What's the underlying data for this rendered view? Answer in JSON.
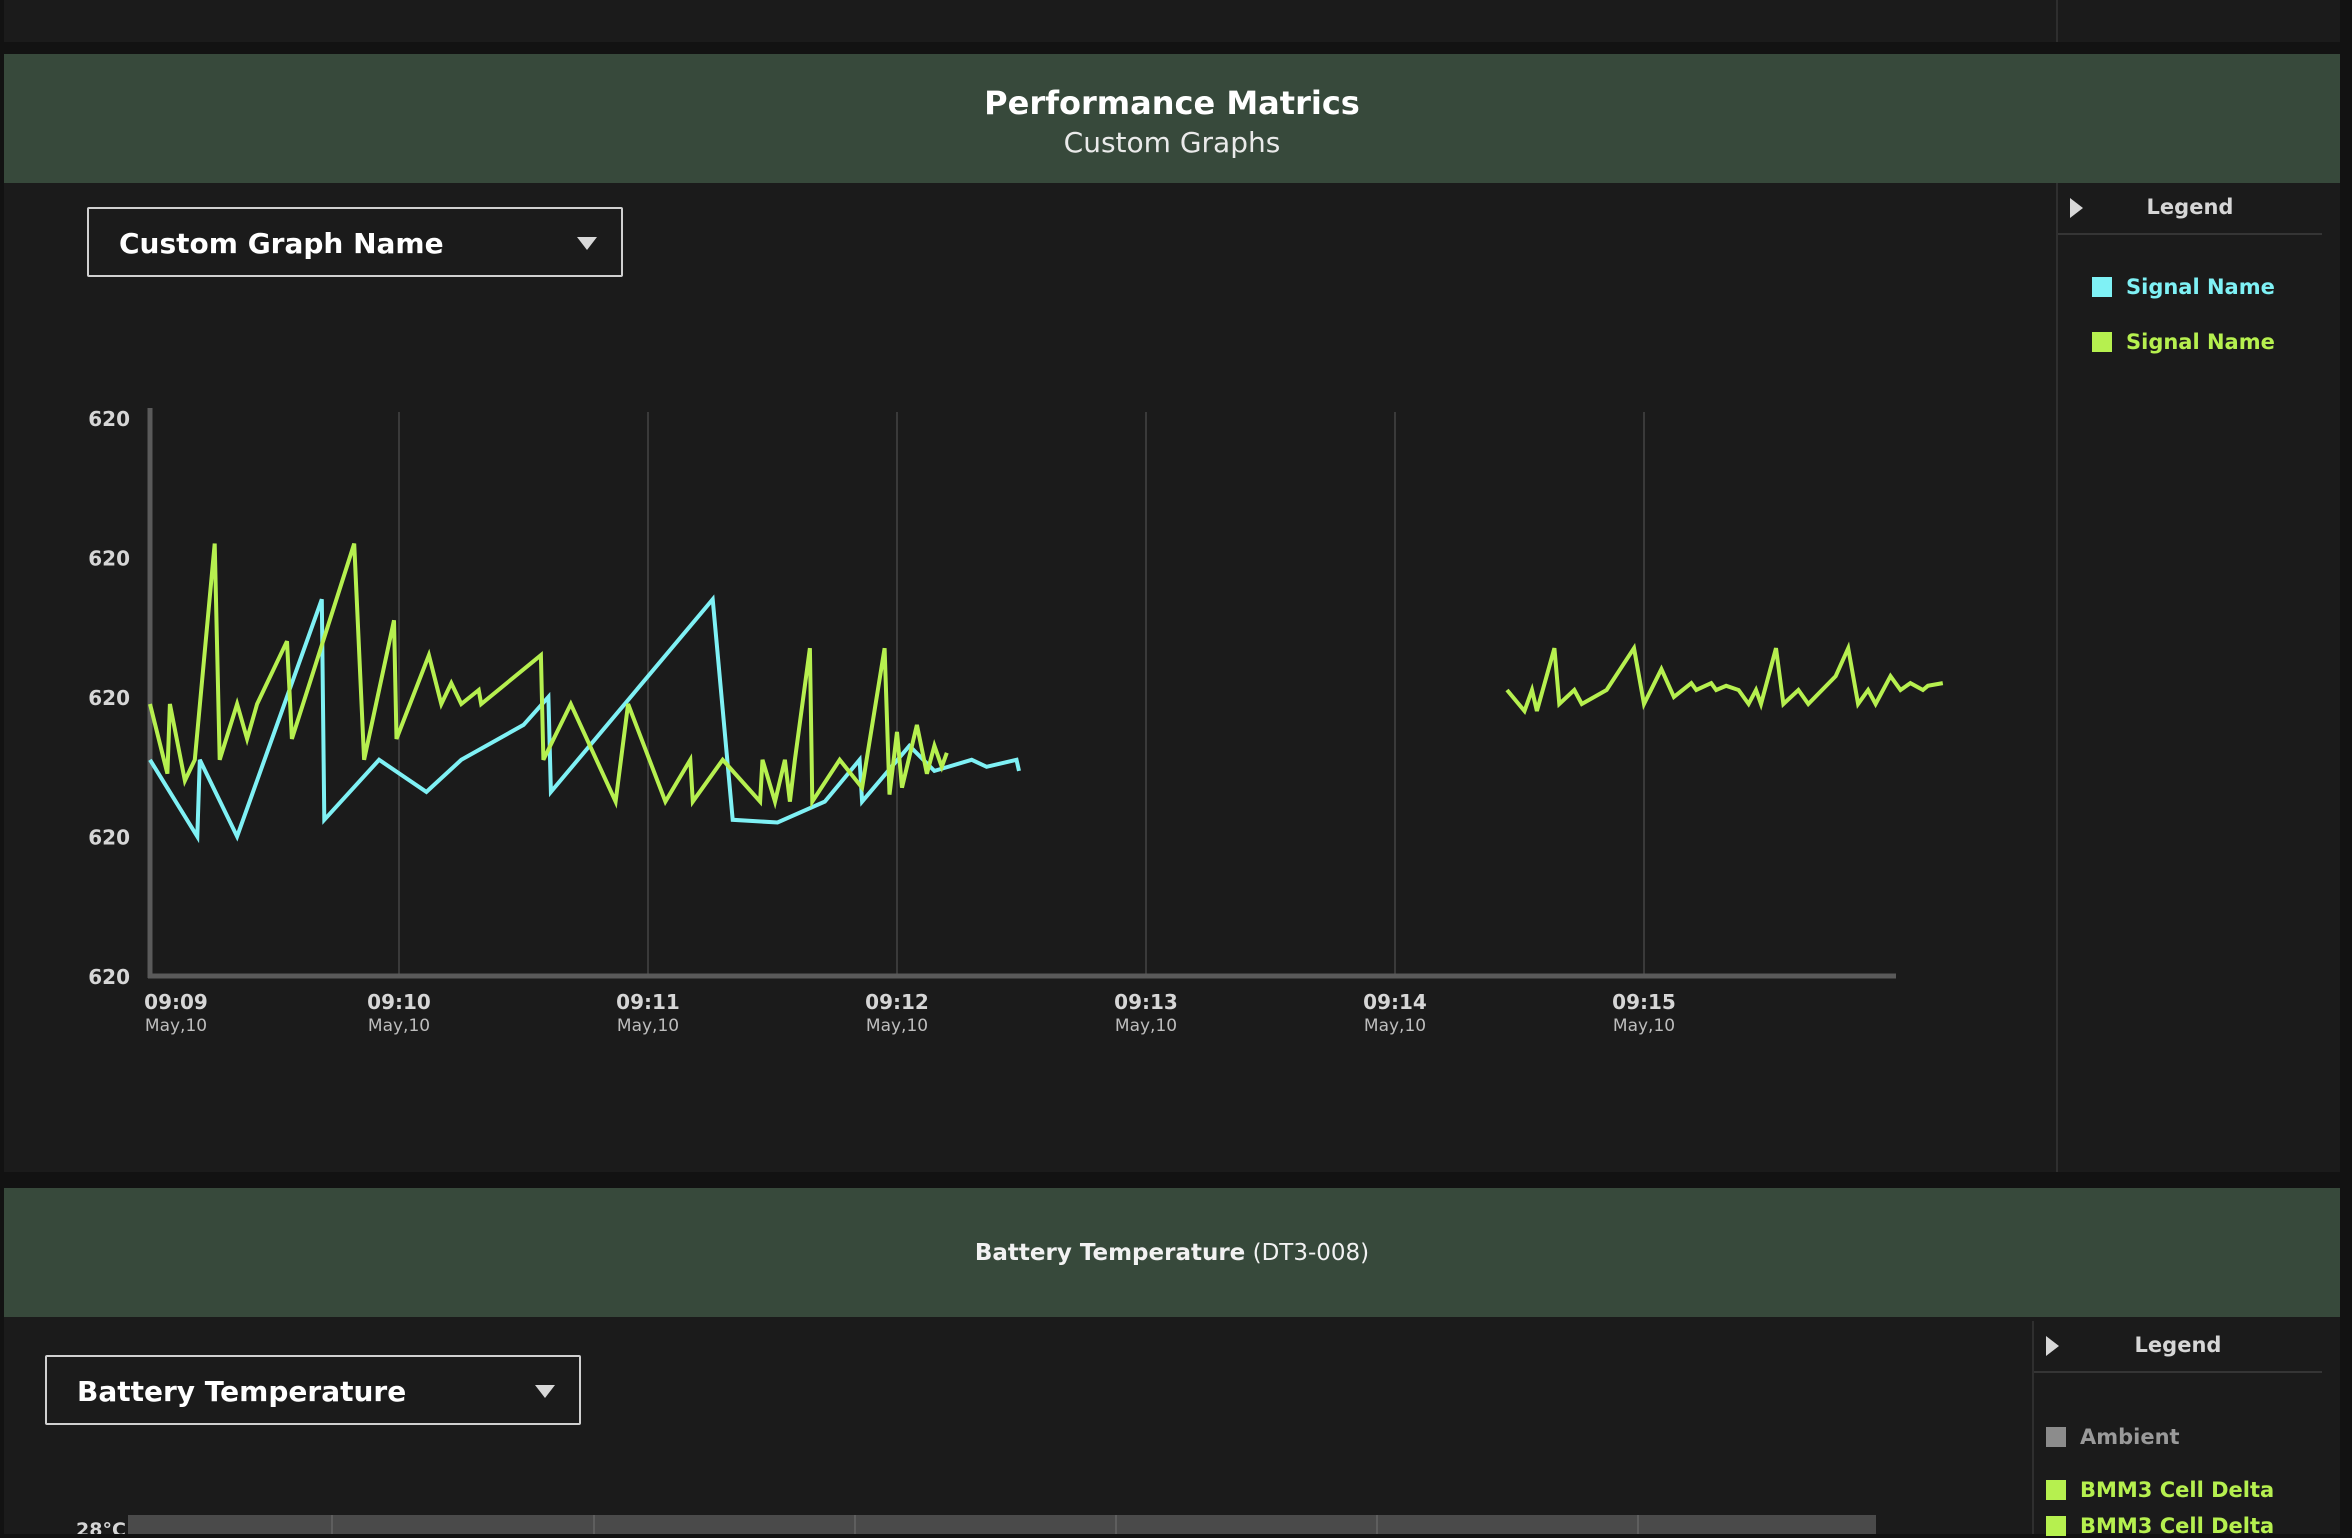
{
  "colors": {
    "header_bg": "#37493b",
    "panel_bg": "#1b1b1b",
    "page_bg": "#121212",
    "signal_cyan": "#7ff1f5",
    "signal_green": "#b6f04f",
    "ambient_gray": "#8c8c8c"
  },
  "performance": {
    "title": "Performance Matrics",
    "subtitle": "Custom Graphs",
    "dropdown": {
      "selected": "Custom Graph Name",
      "icon": "chevron-down-icon"
    },
    "legend": {
      "title": "Legend",
      "toggle_icon": "triangle-right-icon",
      "items": [
        {
          "label": "Signal Name",
          "color": "#7ff1f5"
        },
        {
          "label": "Signal Name",
          "color": "#b6f04f"
        }
      ]
    },
    "chart_data": {
      "type": "line",
      "title": "",
      "xlabel": "",
      "ylabel": "",
      "y_tick_labels": [
        "620",
        "620",
        "620",
        "620",
        "620"
      ],
      "x_ticks": [
        {
          "time": "09:09",
          "date": "May,10"
        },
        {
          "time": "09:10",
          "date": "May,10"
        },
        {
          "time": "09:11",
          "date": "May,10"
        },
        {
          "time": "09:12",
          "date": "May,10"
        },
        {
          "time": "09:13",
          "date": "May,10"
        },
        {
          "time": "09:14",
          "date": "May,10"
        },
        {
          "time": "09:15",
          "date": "May,10"
        }
      ],
      "x_unit": "minutes after 09:09",
      "ylim": [
        0,
        4
      ],
      "grid": "vertical",
      "series": [
        {
          "name": "Signal Name",
          "color": "#7ff1f5",
          "points": [
            [
              0.0,
              1.55
            ],
            [
              0.19,
              1.0
            ],
            [
              0.2,
              1.55
            ],
            [
              0.35,
              1.0
            ],
            [
              0.69,
              2.7
            ],
            [
              0.7,
              1.12
            ],
            [
              0.92,
              1.55
            ],
            [
              1.11,
              1.32
            ],
            [
              1.25,
              1.55
            ],
            [
              1.5,
              1.8
            ],
            [
              1.6,
              2.0
            ],
            [
              1.61,
              1.32
            ],
            [
              2.26,
              2.7
            ],
            [
              2.34,
              1.12
            ],
            [
              2.52,
              1.1
            ],
            [
              2.71,
              1.25
            ],
            [
              2.85,
              1.55
            ],
            [
              2.86,
              1.25
            ],
            [
              3.05,
              1.65
            ],
            [
              3.15,
              1.47
            ],
            [
              3.3,
              1.55
            ],
            [
              3.36,
              1.5
            ],
            [
              3.48,
              1.55
            ],
            [
              3.49,
              1.47
            ]
          ]
        },
        {
          "name": "Signal Name",
          "color": "#b6f04f",
          "points": [
            [
              0.0,
              1.95
            ],
            [
              0.07,
              1.45
            ],
            [
              0.08,
              1.95
            ],
            [
              0.14,
              1.4
            ],
            [
              0.18,
              1.55
            ],
            [
              0.26,
              3.1
            ],
            [
              0.28,
              1.55
            ],
            [
              0.35,
              1.95
            ],
            [
              0.39,
              1.7
            ],
            [
              0.43,
              1.95
            ],
            [
              0.55,
              2.4
            ],
            [
              0.57,
              1.7
            ],
            [
              0.82,
              3.1
            ],
            [
              0.86,
              1.55
            ],
            [
              0.98,
              2.55
            ],
            [
              0.99,
              1.7
            ],
            [
              1.12,
              2.3
            ],
            [
              1.17,
              1.95
            ],
            [
              1.21,
              2.1
            ],
            [
              1.25,
              1.95
            ],
            [
              1.32,
              2.05
            ],
            [
              1.33,
              1.95
            ],
            [
              1.57,
              2.3
            ],
            [
              1.58,
              1.55
            ],
            [
              1.69,
              1.95
            ],
            [
              1.87,
              1.25
            ],
            [
              1.92,
              1.95
            ],
            [
              2.07,
              1.25
            ],
            [
              2.17,
              1.55
            ],
            [
              2.18,
              1.25
            ],
            [
              2.3,
              1.55
            ],
            [
              2.45,
              1.25
            ],
            [
              2.46,
              1.55
            ],
            [
              2.51,
              1.25
            ],
            [
              2.55,
              1.55
            ],
            [
              2.57,
              1.25
            ],
            [
              2.59,
              1.55
            ],
            [
              2.65,
              2.35
            ],
            [
              2.66,
              1.25
            ],
            [
              2.77,
              1.55
            ],
            [
              2.86,
              1.35
            ],
            [
              2.95,
              2.35
            ],
            [
              2.97,
              1.3
            ],
            [
              3.0,
              1.75
            ],
            [
              3.02,
              1.35
            ],
            [
              3.08,
              1.8
            ],
            [
              3.12,
              1.45
            ],
            [
              3.15,
              1.65
            ],
            [
              3.18,
              1.5
            ],
            [
              3.2,
              1.6
            ]
          ]
        },
        {
          "name": "Signal Name",
          "color": "#b6f04f",
          "points": [
            [
              5.45,
              2.05
            ],
            [
              5.52,
              1.9
            ],
            [
              5.55,
              2.05
            ],
            [
              5.57,
              1.9
            ],
            [
              5.64,
              2.35
            ],
            [
              5.66,
              1.95
            ],
            [
              5.72,
              2.05
            ],
            [
              5.75,
              1.95
            ],
            [
              5.85,
              2.05
            ],
            [
              5.96,
              2.35
            ],
            [
              6.0,
              1.95
            ],
            [
              6.07,
              2.2
            ],
            [
              6.12,
              2.0
            ],
            [
              6.19,
              2.1
            ],
            [
              6.21,
              2.05
            ],
            [
              6.27,
              2.1
            ],
            [
              6.29,
              2.05
            ],
            [
              6.33,
              2.08
            ],
            [
              6.38,
              2.05
            ],
            [
              6.42,
              1.95
            ],
            [
              6.45,
              2.05
            ],
            [
              6.47,
              1.95
            ],
            [
              6.53,
              2.35
            ],
            [
              6.56,
              1.95
            ],
            [
              6.62,
              2.05
            ],
            [
              6.66,
              1.95
            ],
            [
              6.77,
              2.15
            ],
            [
              6.82,
              2.35
            ],
            [
              6.86,
              1.95
            ],
            [
              6.9,
              2.05
            ],
            [
              6.93,
              1.95
            ],
            [
              6.99,
              2.15
            ],
            [
              7.03,
              2.05
            ],
            [
              7.07,
              2.1
            ],
            [
              7.12,
              2.05
            ],
            [
              7.14,
              2.08
            ],
            [
              7.2,
              2.1
            ]
          ]
        }
      ]
    }
  },
  "battery": {
    "title_bold": "Battery Temperature",
    "title_suffix": "(DT3-008)",
    "dropdown": {
      "selected": "Battery Temperature",
      "icon": "chevron-down-icon"
    },
    "legend": {
      "title": "Legend",
      "toggle_icon": "triangle-right-icon",
      "items": [
        {
          "label": "Ambient",
          "color": "#8c8c8c"
        },
        {
          "label": "BMM3 Cell Delta",
          "color": "#b6f04f"
        },
        {
          "label": "BMM3 Cell Delta",
          "color": "#b6f04f"
        }
      ]
    },
    "chart_data": {
      "type": "area",
      "y_tick_labels": [
        "28°C"
      ],
      "series": []
    }
  }
}
